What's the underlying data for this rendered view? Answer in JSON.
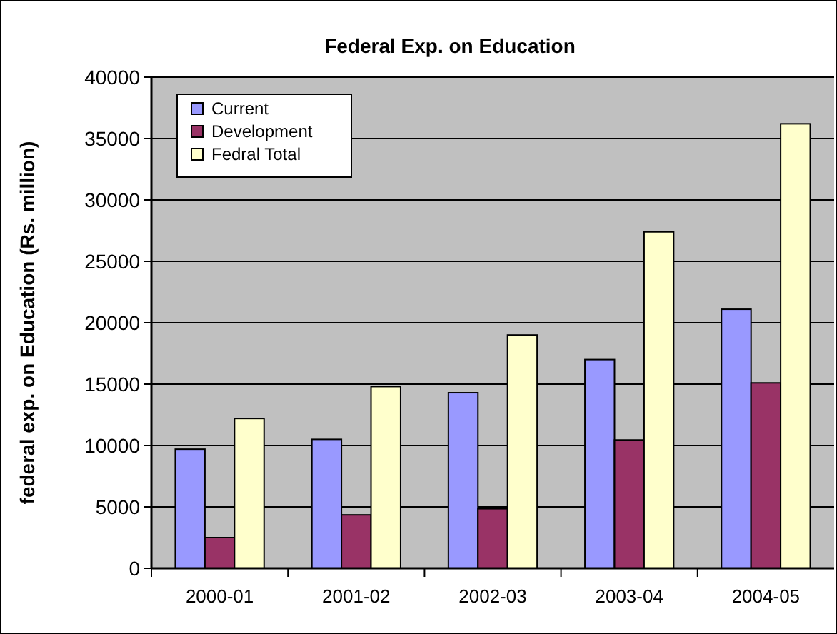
{
  "chart_data": {
    "type": "bar",
    "title": "Federal Exp. on Education",
    "ylabel": "federal exp. on Education (Rs. million)",
    "categories": [
      "2000-01",
      "2001-02",
      "2002-03",
      "2003-04",
      "2004-05"
    ],
    "series": [
      {
        "name": "Current",
        "color": "#9999ff",
        "values": [
          9700,
          10500,
          14300,
          17000,
          21100
        ]
      },
      {
        "name": "Development",
        "color": "#993366",
        "values": [
          2500,
          4350,
          4850,
          10450,
          15100
        ]
      },
      {
        "name": "Fedral Total",
        "color": "#ffffcc",
        "values": [
          12200,
          14800,
          19000,
          27400,
          36200
        ]
      }
    ],
    "ylim": [
      0,
      40000
    ],
    "yticks": [
      0,
      5000,
      10000,
      15000,
      20000,
      25000,
      30000,
      35000,
      40000
    ],
    "grid": "y",
    "legend": "top left"
  }
}
